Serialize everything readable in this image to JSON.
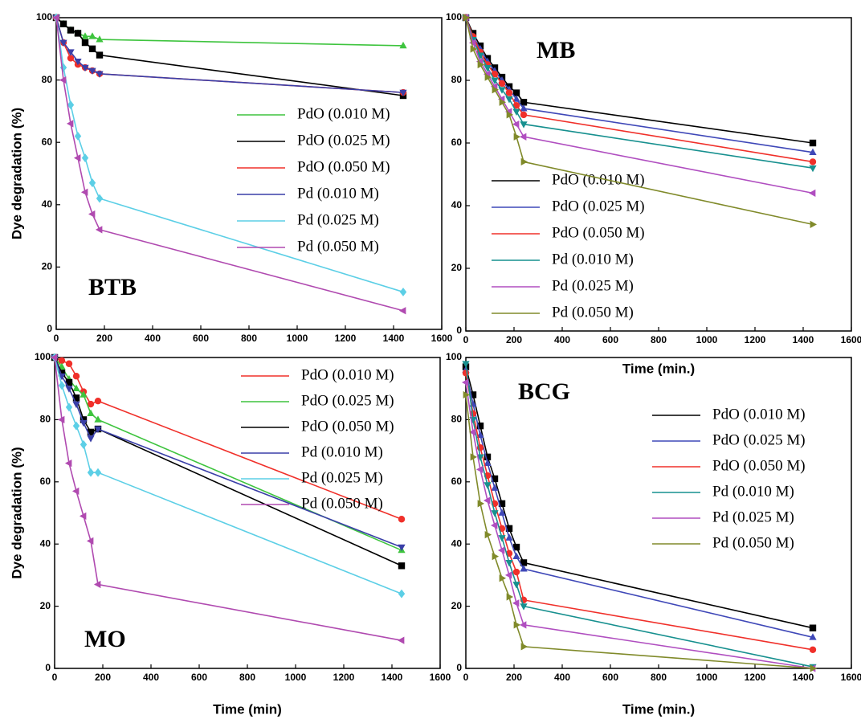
{
  "chart_data": [
    {
      "type": "line",
      "annotation": "BTB",
      "ylabel": "Dye degradation (%)",
      "x": [
        0,
        30,
        60,
        90,
        120,
        150,
        180,
        1440
      ],
      "xlim": [
        0,
        1600
      ],
      "xticks": [
        0,
        200,
        400,
        600,
        800,
        1000,
        1200,
        1400,
        1600
      ],
      "ylim": [
        0,
        100
      ],
      "yticks": [
        0,
        20,
        40,
        60,
        80,
        100
      ],
      "series": [
        {
          "name": "PdO (0.010 M)",
          "color": "#3ec43e",
          "marker": "triangle",
          "values": [
            100,
            98,
            96,
            95,
            94,
            94,
            93,
            91
          ]
        },
        {
          "name": "PdO (0.025 M)",
          "color": "#000000",
          "marker": "square",
          "values": [
            100,
            98,
            96,
            95,
            92,
            90,
            88,
            75
          ]
        },
        {
          "name": "PdO (0.050 M)",
          "color": "#f0302a",
          "marker": "circle",
          "values": [
            100,
            92,
            87,
            85,
            84,
            83,
            82,
            76
          ]
        },
        {
          "name": "Pd (0.010 M)",
          "color": "#3a3fa8",
          "marker": "triangle-down",
          "values": [
            100,
            92,
            89,
            86,
            84,
            83,
            82,
            76
          ]
        },
        {
          "name": "Pd (0.025 M)",
          "color": "#5ccfe6",
          "marker": "diamond",
          "values": [
            100,
            84,
            72,
            62,
            55,
            47,
            42,
            12
          ]
        },
        {
          "name": "Pd (0.050 M)",
          "color": "#b04ab0",
          "marker": "triangle-left",
          "values": [
            100,
            80,
            66,
            55,
            44,
            37,
            32,
            6
          ]
        }
      ]
    },
    {
      "type": "line",
      "annotation": "MB",
      "xlabel": "Time (min.)",
      "x": [
        0,
        30,
        60,
        90,
        120,
        150,
        180,
        210,
        240,
        1440
      ],
      "xlim": [
        0,
        1600
      ],
      "xticks": [
        0,
        200,
        400,
        600,
        800,
        1000,
        1200,
        1400,
        1600
      ],
      "ylim": [
        0,
        100
      ],
      "yticks": [
        0,
        20,
        40,
        60,
        80,
        100
      ],
      "series": [
        {
          "name": "PdO (0.010 M)",
          "color": "#000000",
          "marker": "square",
          "values": [
            100,
            95,
            91,
            87,
            84,
            81,
            78,
            76,
            73,
            60
          ]
        },
        {
          "name": "PdO (0.025 M)",
          "color": "#3f48b8",
          "marker": "triangle",
          "values": [
            100,
            94,
            90,
            86,
            83,
            80,
            77,
            74,
            71,
            57
          ]
        },
        {
          "name": "PdO (0.050 M)",
          "color": "#f0302a",
          "marker": "circle",
          "values": [
            100,
            94,
            89,
            85,
            82,
            79,
            76,
            72,
            69,
            54
          ]
        },
        {
          "name": "Pd (0.010 M)",
          "color": "#17908f",
          "marker": "triangle-down",
          "values": [
            100,
            93,
            88,
            84,
            80,
            77,
            74,
            70,
            66,
            52
          ]
        },
        {
          "name": "Pd (0.025 M)",
          "color": "#b04ec0",
          "marker": "triangle-left",
          "values": [
            100,
            92,
            86,
            82,
            78,
            74,
            70,
            66,
            62,
            44
          ]
        },
        {
          "name": "Pd (0.050 M)",
          "color": "#808a2a",
          "marker": "triangle-right",
          "values": [
            100,
            90,
            85,
            81,
            77,
            73,
            69,
            62,
            54,
            34
          ]
        }
      ]
    },
    {
      "type": "line",
      "annotation": "MO",
      "ylabel": "Dye degradation (%)",
      "xlabel": "Time (min)",
      "x": [
        0,
        30,
        60,
        90,
        120,
        150,
        180,
        1440
      ],
      "xlim": [
        0,
        1600
      ],
      "xticks": [
        0,
        200,
        400,
        600,
        800,
        1000,
        1200,
        1400,
        1600
      ],
      "ylim": [
        0,
        100
      ],
      "yticks": [
        0,
        20,
        40,
        60,
        80,
        100
      ],
      "series": [
        {
          "name": "PdO (0.010 M)",
          "color": "#f0302a",
          "marker": "circle",
          "values": [
            100,
            99,
            98,
            94,
            89,
            85,
            86,
            48
          ]
        },
        {
          "name": "PdO (0.025 M)",
          "color": "#3ec43e",
          "marker": "triangle",
          "values": [
            100,
            97,
            93,
            90,
            88,
            82,
            80,
            38
          ]
        },
        {
          "name": "PdO (0.050 M)",
          "color": "#000000",
          "marker": "square",
          "values": [
            100,
            95,
            92,
            87,
            80,
            76,
            77,
            33
          ]
        },
        {
          "name": "Pd (0.010 M)",
          "color": "#3a3fa8",
          "marker": "triangle-down",
          "values": [
            100,
            94,
            90,
            85,
            79,
            74,
            77,
            39
          ]
        },
        {
          "name": "Pd (0.025 M)",
          "color": "#5ccfe6",
          "marker": "diamond",
          "values": [
            100,
            91,
            84,
            78,
            72,
            63,
            63,
            24
          ]
        },
        {
          "name": "Pd (0.050 M)",
          "color": "#b04ab0",
          "marker": "triangle-left",
          "values": [
            100,
            80,
            66,
            57,
            49,
            41,
            27,
            9
          ]
        }
      ]
    },
    {
      "type": "line",
      "annotation": "BCG",
      "xlabel": "Time (min.)",
      "x": [
        0,
        30,
        60,
        90,
        120,
        150,
        180,
        210,
        240,
        1440
      ],
      "xlim": [
        0,
        1600
      ],
      "xticks": [
        0,
        200,
        400,
        600,
        800,
        1000,
        1200,
        1400,
        1600
      ],
      "ylim": [
        0,
        100
      ],
      "yticks": [
        0,
        20,
        40,
        60,
        80,
        100
      ],
      "series": [
        {
          "name": "PdO (0.010 M)",
          "color": "#000000",
          "marker": "square",
          "values": [
            97,
            88,
            78,
            68,
            61,
            53,
            45,
            39,
            34,
            13
          ]
        },
        {
          "name": "PdO (0.025 M)",
          "color": "#3f48b8",
          "marker": "triangle",
          "values": [
            96,
            85,
            75,
            66,
            58,
            50,
            42,
            36,
            32,
            10
          ]
        },
        {
          "name": "PdO (0.050 M)",
          "color": "#f0302a",
          "marker": "circle",
          "values": [
            95,
            82,
            71,
            62,
            53,
            45,
            37,
            31,
            22,
            6
          ]
        },
        {
          "name": "Pd (0.010 M)",
          "color": "#17908f",
          "marker": "triangle-down",
          "values": [
            98,
            80,
            68,
            59,
            50,
            42,
            34,
            27,
            20,
            0.5
          ]
        },
        {
          "name": "Pd (0.025 M)",
          "color": "#b04ec0",
          "marker": "triangle-left",
          "values": [
            92,
            76,
            64,
            54,
            46,
            38,
            30,
            21,
            14,
            0
          ]
        },
        {
          "name": "Pd (0.050 M)",
          "color": "#808a2a",
          "marker": "triangle-right",
          "values": [
            88,
            68,
            53,
            43,
            36,
            29,
            23,
            14,
            7,
            0
          ]
        }
      ]
    }
  ]
}
